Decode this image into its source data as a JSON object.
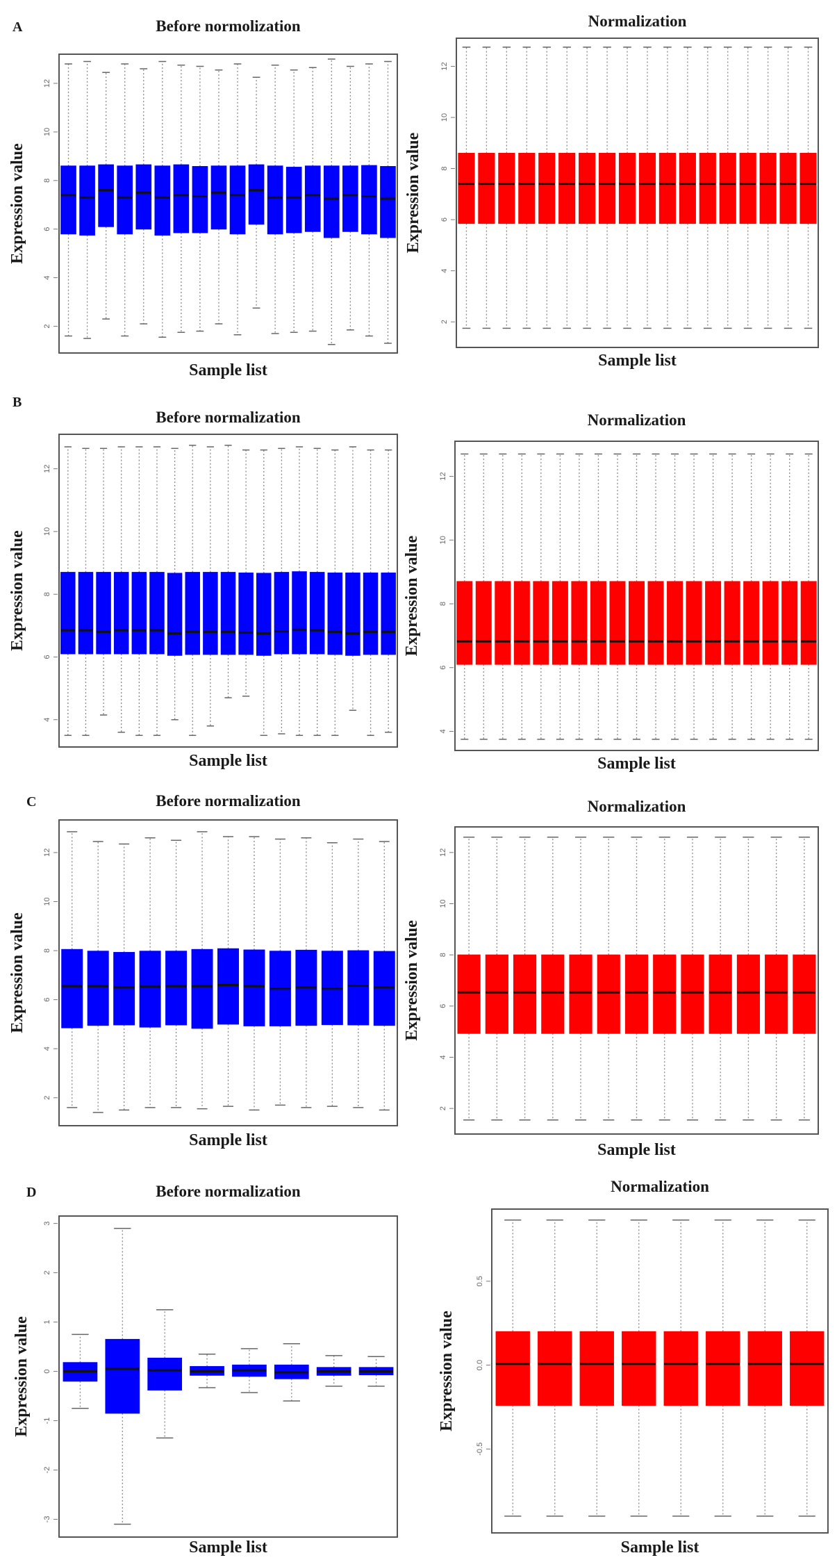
{
  "figure": {
    "box_fields": [
      "lower_whisker",
      "q1",
      "median",
      "q3",
      "upper_whisker"
    ]
  },
  "chart_data": [
    {
      "type": "boxplot",
      "panel_label": "A",
      "title": "Before normolization",
      "xlabel": "Sample list",
      "ylabel": "Expression value",
      "yticks": [
        2,
        4,
        6,
        8,
        10,
        12
      ],
      "ylim": [
        0.9,
        13.2
      ],
      "color": "#0000ff",
      "boxes": [
        [
          1.6,
          5.8,
          7.4,
          8.6,
          12.8
        ],
        [
          1.5,
          5.75,
          7.3,
          8.6,
          12.9
        ],
        [
          2.3,
          6.1,
          7.6,
          8.65,
          12.45
        ],
        [
          1.6,
          5.8,
          7.3,
          8.6,
          12.8
        ],
        [
          2.1,
          6.0,
          7.5,
          8.65,
          12.6
        ],
        [
          1.55,
          5.75,
          7.3,
          8.6,
          12.9
        ],
        [
          1.75,
          5.85,
          7.4,
          8.65,
          12.75
        ],
        [
          1.8,
          5.85,
          7.35,
          8.58,
          12.7
        ],
        [
          2.1,
          6.0,
          7.5,
          8.6,
          12.55
        ],
        [
          1.65,
          5.8,
          7.4,
          8.6,
          12.8
        ],
        [
          2.75,
          6.2,
          7.6,
          8.65,
          12.25
        ],
        [
          1.7,
          5.8,
          7.3,
          8.6,
          12.75
        ],
        [
          1.75,
          5.85,
          7.3,
          8.55,
          12.55
        ],
        [
          1.8,
          5.9,
          7.4,
          8.6,
          12.65
        ],
        [
          1.25,
          5.65,
          7.25,
          8.6,
          13.0
        ],
        [
          1.85,
          5.9,
          7.4,
          8.6,
          12.7
        ],
        [
          1.6,
          5.8,
          7.35,
          8.62,
          12.8
        ],
        [
          1.3,
          5.65,
          7.25,
          8.58,
          12.9
        ]
      ]
    },
    {
      "type": "boxplot",
      "panel_label": "",
      "title": "Normalization",
      "xlabel": "Sample list",
      "ylabel": "Expression value",
      "yticks": [
        2,
        4,
        6,
        8,
        10,
        12
      ],
      "ylim": [
        1.0,
        13.1
      ],
      "color": "#ff0000",
      "boxes": [
        [
          1.75,
          5.85,
          7.4,
          8.6,
          12.75
        ],
        [
          1.75,
          5.85,
          7.4,
          8.6,
          12.75
        ],
        [
          1.75,
          5.85,
          7.4,
          8.6,
          12.75
        ],
        [
          1.75,
          5.85,
          7.4,
          8.6,
          12.75
        ],
        [
          1.75,
          5.85,
          7.4,
          8.6,
          12.75
        ],
        [
          1.75,
          5.85,
          7.4,
          8.6,
          12.75
        ],
        [
          1.75,
          5.85,
          7.4,
          8.6,
          12.75
        ],
        [
          1.75,
          5.85,
          7.4,
          8.6,
          12.75
        ],
        [
          1.75,
          5.85,
          7.4,
          8.6,
          12.75
        ],
        [
          1.75,
          5.85,
          7.4,
          8.6,
          12.75
        ],
        [
          1.75,
          5.85,
          7.4,
          8.6,
          12.75
        ],
        [
          1.75,
          5.85,
          7.4,
          8.6,
          12.75
        ],
        [
          1.75,
          5.85,
          7.4,
          8.6,
          12.75
        ],
        [
          1.75,
          5.85,
          7.4,
          8.6,
          12.75
        ],
        [
          1.75,
          5.85,
          7.4,
          8.6,
          12.75
        ],
        [
          1.75,
          5.85,
          7.4,
          8.6,
          12.75
        ],
        [
          1.75,
          5.85,
          7.4,
          8.6,
          12.75
        ],
        [
          1.75,
          5.85,
          7.4,
          8.6,
          12.75
        ]
      ]
    },
    {
      "type": "boxplot",
      "panel_label": "B",
      "title": "Before normalization",
      "xlabel": "Sample list",
      "ylabel": "Expression value",
      "yticks": [
        4,
        6,
        8,
        10,
        12
      ],
      "ylim": [
        3.13,
        13.1
      ],
      "color": "#0000ff",
      "boxes": [
        [
          3.5,
          6.1,
          6.85,
          8.7,
          12.7
        ],
        [
          3.5,
          6.1,
          6.85,
          8.7,
          12.65
        ],
        [
          4.15,
          6.1,
          6.8,
          8.7,
          12.65
        ],
        [
          3.6,
          6.1,
          6.85,
          8.7,
          12.7
        ],
        [
          3.5,
          6.1,
          6.85,
          8.7,
          12.7
        ],
        [
          3.5,
          6.1,
          6.85,
          8.7,
          12.7
        ],
        [
          4.0,
          6.05,
          6.75,
          8.67,
          12.65
        ],
        [
          3.5,
          6.08,
          6.8,
          8.7,
          12.75
        ],
        [
          3.8,
          6.08,
          6.8,
          8.7,
          12.7
        ],
        [
          4.7,
          6.08,
          6.8,
          8.7,
          12.75
        ],
        [
          4.75,
          6.08,
          6.78,
          8.68,
          12.6
        ],
        [
          3.5,
          6.05,
          6.75,
          8.67,
          12.6
        ],
        [
          3.55,
          6.1,
          6.82,
          8.7,
          12.65
        ],
        [
          3.5,
          6.1,
          6.87,
          8.72,
          12.7
        ],
        [
          3.5,
          6.1,
          6.85,
          8.7,
          12.65
        ],
        [
          3.5,
          6.08,
          6.8,
          8.68,
          12.6
        ],
        [
          4.3,
          6.05,
          6.75,
          8.68,
          12.7
        ],
        [
          3.5,
          6.08,
          6.8,
          8.68,
          12.6
        ],
        [
          3.6,
          6.08,
          6.8,
          8.68,
          12.6
        ]
      ]
    },
    {
      "type": "boxplot",
      "panel_label": "",
      "title": "Normalization",
      "xlabel": "Sample list",
      "ylabel": "Expression value",
      "yticks": [
        4,
        6,
        8,
        10,
        12
      ],
      "ylim": [
        3.4,
        13.1
      ],
      "color": "#ff0000",
      "boxes": [
        [
          3.75,
          6.1,
          6.82,
          8.7,
          12.7
        ],
        [
          3.75,
          6.1,
          6.82,
          8.7,
          12.7
        ],
        [
          3.75,
          6.1,
          6.82,
          8.7,
          12.7
        ],
        [
          3.75,
          6.1,
          6.82,
          8.7,
          12.7
        ],
        [
          3.75,
          6.1,
          6.82,
          8.7,
          12.7
        ],
        [
          3.75,
          6.1,
          6.82,
          8.7,
          12.7
        ],
        [
          3.75,
          6.1,
          6.82,
          8.7,
          12.7
        ],
        [
          3.75,
          6.1,
          6.82,
          8.7,
          12.7
        ],
        [
          3.75,
          6.1,
          6.82,
          8.7,
          12.7
        ],
        [
          3.75,
          6.1,
          6.82,
          8.7,
          12.7
        ],
        [
          3.75,
          6.1,
          6.82,
          8.7,
          12.7
        ],
        [
          3.75,
          6.1,
          6.82,
          8.7,
          12.7
        ],
        [
          3.75,
          6.1,
          6.82,
          8.7,
          12.7
        ],
        [
          3.75,
          6.1,
          6.82,
          8.7,
          12.7
        ],
        [
          3.75,
          6.1,
          6.82,
          8.7,
          12.7
        ],
        [
          3.75,
          6.1,
          6.82,
          8.7,
          12.7
        ],
        [
          3.75,
          6.1,
          6.82,
          8.7,
          12.7
        ],
        [
          3.75,
          6.1,
          6.82,
          8.7,
          12.7
        ],
        [
          3.75,
          6.1,
          6.82,
          8.7,
          12.7
        ]
      ]
    },
    {
      "type": "boxplot",
      "panel_label": "C",
      "title": "Before normalization",
      "xlabel": "Sample list",
      "ylabel": "Expression value",
      "yticks": [
        2,
        4,
        6,
        8,
        10,
        12
      ],
      "ylim": [
        0.86,
        13.33
      ],
      "color": "#0000ff",
      "boxes": [
        [
          1.6,
          4.85,
          6.55,
          8.05,
          12.85
        ],
        [
          1.4,
          4.95,
          6.55,
          7.98,
          12.45
        ],
        [
          1.5,
          4.97,
          6.5,
          7.93,
          12.35
        ],
        [
          1.6,
          4.88,
          6.53,
          7.98,
          12.6
        ],
        [
          1.6,
          4.97,
          6.55,
          7.98,
          12.5
        ],
        [
          1.55,
          4.83,
          6.55,
          8.05,
          12.85
        ],
        [
          1.65,
          5.0,
          6.6,
          8.08,
          12.65
        ],
        [
          1.5,
          4.93,
          6.55,
          8.03,
          12.65
        ],
        [
          1.7,
          4.93,
          6.45,
          7.98,
          12.55
        ],
        [
          1.6,
          4.95,
          6.5,
          8.02,
          12.6
        ],
        [
          1.65,
          4.98,
          6.45,
          7.98,
          12.4
        ],
        [
          1.6,
          4.97,
          6.57,
          8.0,
          12.55
        ],
        [
          1.5,
          4.95,
          6.5,
          7.97,
          12.45
        ]
      ]
    },
    {
      "type": "boxplot",
      "panel_label": "",
      "title": "Normalization",
      "xlabel": "Sample list",
      "ylabel": "Expression value",
      "yticks": [
        2,
        4,
        6,
        8,
        10,
        12
      ],
      "ylim": [
        1.0,
        13.0
      ],
      "color": "#ff0000",
      "boxes": [
        [
          1.55,
          4.93,
          6.53,
          8.0,
          12.6
        ],
        [
          1.55,
          4.93,
          6.53,
          8.0,
          12.6
        ],
        [
          1.55,
          4.93,
          6.53,
          8.0,
          12.6
        ],
        [
          1.55,
          4.93,
          6.53,
          8.0,
          12.6
        ],
        [
          1.55,
          4.93,
          6.53,
          8.0,
          12.6
        ],
        [
          1.55,
          4.93,
          6.53,
          8.0,
          12.6
        ],
        [
          1.55,
          4.93,
          6.53,
          8.0,
          12.6
        ],
        [
          1.55,
          4.93,
          6.53,
          8.0,
          12.6
        ],
        [
          1.55,
          4.93,
          6.53,
          8.0,
          12.6
        ],
        [
          1.55,
          4.93,
          6.53,
          8.0,
          12.6
        ],
        [
          1.55,
          4.93,
          6.53,
          8.0,
          12.6
        ],
        [
          1.55,
          4.93,
          6.53,
          8.0,
          12.6
        ],
        [
          1.55,
          4.93,
          6.53,
          8.0,
          12.6
        ]
      ]
    },
    {
      "type": "boxplot",
      "panel_label": "D",
      "title": "Before normalization",
      "xlabel": "Sample list",
      "ylabel": "Expression value",
      "yticks": [
        -3,
        -2,
        -1,
        0,
        1,
        2,
        3
      ],
      "ylim": [
        -3.36,
        3.15
      ],
      "color": "#0000ff",
      "boxes": [
        [
          -0.75,
          -0.2,
          0.0,
          0.18,
          0.75
        ],
        [
          -3.1,
          -0.85,
          0.05,
          0.65,
          2.9
        ],
        [
          -1.35,
          -0.38,
          0.02,
          0.27,
          1.25
        ],
        [
          -0.33,
          -0.08,
          0.0,
          0.1,
          0.35
        ],
        [
          -0.43,
          -0.1,
          0.02,
          0.13,
          0.46
        ],
        [
          -0.6,
          -0.15,
          -0.02,
          0.13,
          0.56
        ],
        [
          -0.3,
          -0.08,
          0.0,
          0.08,
          0.32
        ],
        [
          -0.3,
          -0.07,
          0.0,
          0.08,
          0.3
        ]
      ]
    },
    {
      "type": "boxplot",
      "panel_label": "",
      "title": "Normalization",
      "xlabel": "Sample list",
      "ylabel": "Expression value",
      "yticks": [
        -0.5,
        0.0,
        0.5
      ],
      "ytick_labels": [
        "-0.5",
        "0.0",
        "0.5"
      ],
      "ylim": [
        -1.0,
        0.93
      ],
      "color": "#ff0000",
      "boxes": [
        [
          -0.9,
          -0.24,
          0.007,
          0.2,
          0.865
        ],
        [
          -0.9,
          -0.24,
          0.007,
          0.2,
          0.865
        ],
        [
          -0.9,
          -0.24,
          0.007,
          0.2,
          0.865
        ],
        [
          -0.9,
          -0.24,
          0.007,
          0.2,
          0.865
        ],
        [
          -0.9,
          -0.24,
          0.007,
          0.2,
          0.865
        ],
        [
          -0.9,
          -0.24,
          0.007,
          0.2,
          0.865
        ],
        [
          -0.9,
          -0.24,
          0.007,
          0.2,
          0.865
        ],
        [
          -0.9,
          -0.24,
          0.007,
          0.2,
          0.865
        ]
      ]
    }
  ]
}
